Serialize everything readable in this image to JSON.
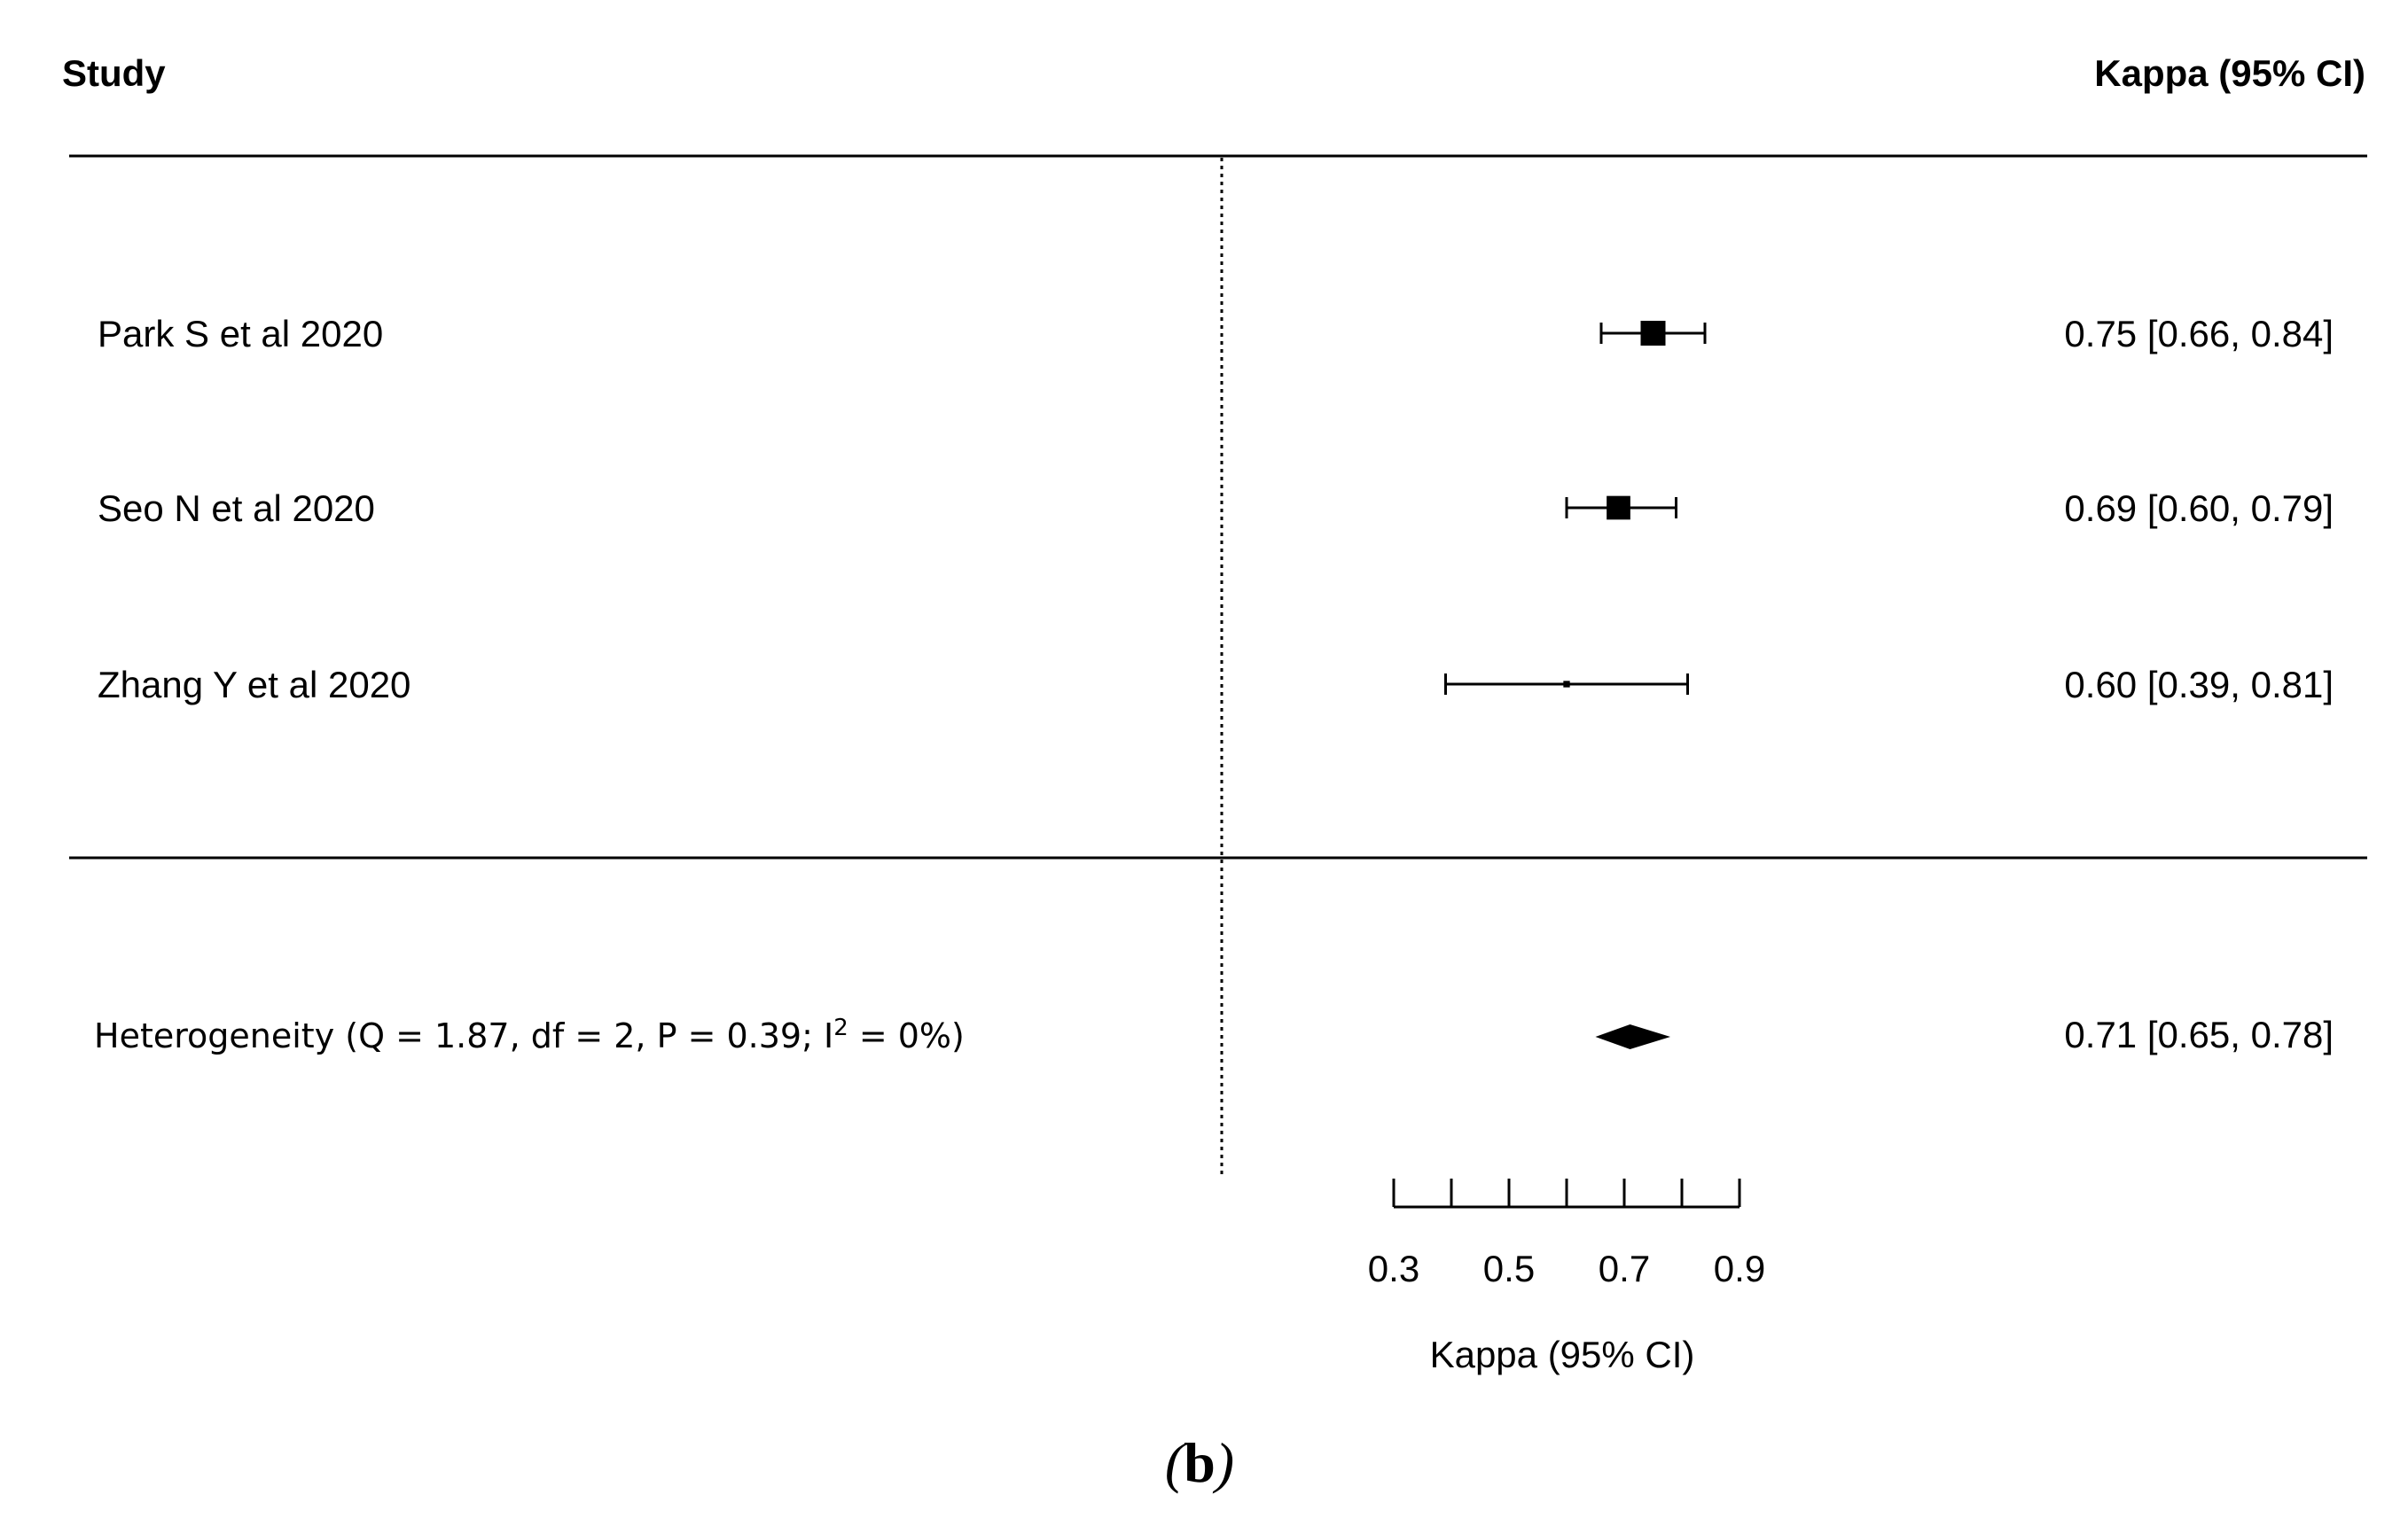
{
  "chart_data": {
    "type": "forest",
    "header_study": "Study",
    "header_estimate": "Kappa (95% CI)",
    "xlabel": "Kappa (95% CI)",
    "xlim": [
      0.3,
      0.9
    ],
    "ticks": [
      0.3,
      0.4,
      0.5,
      0.6,
      0.7,
      0.8,
      0.9
    ],
    "tick_labels": [
      "0.3",
      "0.5",
      "0.7",
      "0.9"
    ],
    "tick_label_values": [
      0.3,
      0.5,
      0.7,
      0.9
    ],
    "reference_line": 0,
    "studies": [
      {
        "name": "Park S et al 2020",
        "estimate": 0.75,
        "lower": 0.66,
        "upper": 0.84,
        "text": "0.75 [0.66, 0.84]",
        "weight": 0.44
      },
      {
        "name": "Seo N et al 2020",
        "estimate": 0.69,
        "lower": 0.6,
        "upper": 0.79,
        "text": "0.69 [0.60, 0.79]",
        "weight": 0.4
      },
      {
        "name": "Zhang Y et al 2020",
        "estimate": 0.6,
        "lower": 0.39,
        "upper": 0.81,
        "text": "0.60 [0.39, 0.81]",
        "weight": 0.03
      }
    ],
    "summary": {
      "prefix": "Heterogeneity (Q = 1.87, df = 2, P = 0.39; I",
      "superscript": "2",
      "suffix": " = 0%)",
      "estimate": 0.71,
      "lower": 0.65,
      "upper": 0.78,
      "text": "0.71 [0.65, 0.78]"
    },
    "caption_open": "(",
    "caption_letter": "b",
    "caption_close": ")"
  }
}
